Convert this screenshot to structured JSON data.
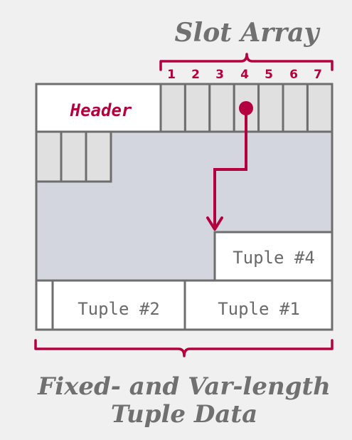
{
  "slot_array_title": "Slot Array",
  "slot_numbers": [
    "1",
    "2",
    "3",
    "4",
    "5",
    "6",
    "7"
  ],
  "header_label": "Header",
  "tuples": {
    "tuple4": "Tuple #4",
    "tuple2": "Tuple #2",
    "tuple1": "Tuple #1"
  },
  "footer_line1": "Fixed- and Var-length",
  "footer_line2": "Tuple Data",
  "colors": {
    "accent": "#b5003f",
    "outline": "#6e6e6e",
    "page_fill": "#d3d6de",
    "slot_fill": "#e0e0e0",
    "background": "#f0f0f0"
  }
}
